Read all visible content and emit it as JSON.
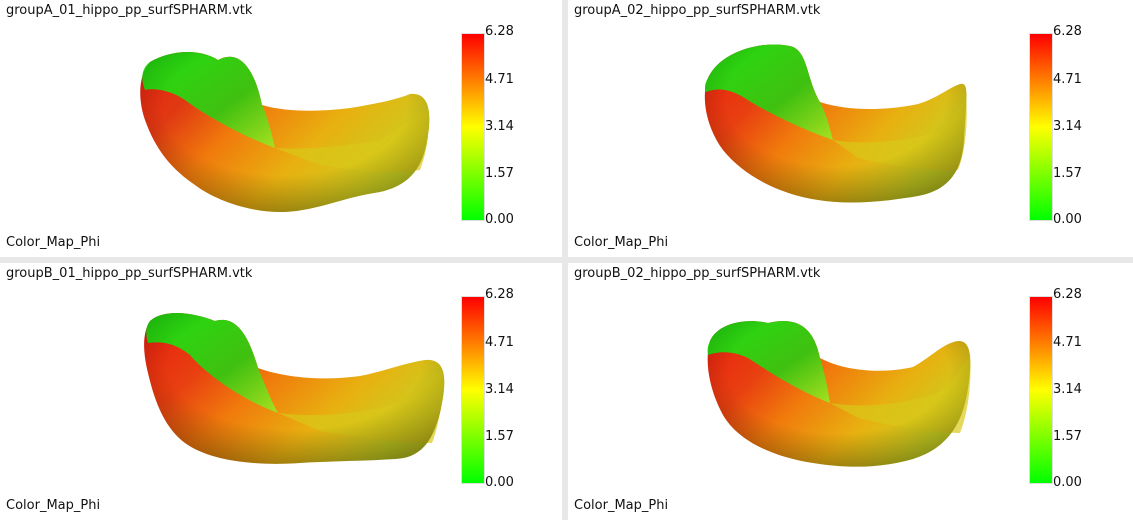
{
  "colors": {
    "low": "#00ff00",
    "mid": "#ffff00",
    "high": "#ff0000",
    "background": "#ffffff",
    "divider": "#e8e8e8"
  },
  "colorbar_ticks": [
    "6.28",
    "4.71",
    "3.14",
    "1.57",
    "0.00"
  ],
  "viewports": [
    {
      "title": "groupA_01_hippo_pp_surfSPHARM.vtk",
      "map_name": "Color_Map_Phi"
    },
    {
      "title": "groupA_02_hippo_pp_surfSPHARM.vtk",
      "map_name": "Color_Map_Phi"
    },
    {
      "title": "groupB_01_hippo_pp_surfSPHARM.vtk",
      "map_name": "Color_Map_Phi"
    },
    {
      "title": "groupB_02_hippo_pp_surfSPHARM.vtk",
      "map_name": "Color_Map_Phi"
    }
  ]
}
